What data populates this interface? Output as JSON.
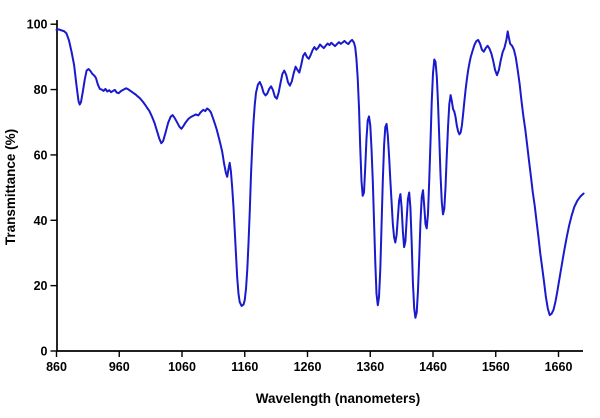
{
  "chart_data": {
    "type": "line",
    "title": "",
    "xlabel": "Wavelength (nanometers)",
    "ylabel": "Transmittance  (%)",
    "xlim": [
      860,
      1700
    ],
    "ylim": [
      0,
      100
    ],
    "x_ticks": [
      "860",
      "960",
      "1060",
      "1160",
      "1260",
      "1360",
      "1460",
      "1560",
      "1660"
    ],
    "y_ticks": [
      "0",
      "20",
      "40",
      "60",
      "80",
      "100"
    ],
    "grid": false,
    "legend": "none",
    "line_color": "#1a1acd",
    "axis_color": "#000000",
    "background_color": "#ffffff",
    "series": [
      {
        "name": "transmittance",
        "points": [
          [
            860,
            98.3
          ],
          [
            864,
            98.4
          ],
          [
            868,
            98.1
          ],
          [
            872,
            97.9
          ],
          [
            876,
            97.2
          ],
          [
            880,
            95.0
          ],
          [
            884,
            91.5
          ],
          [
            888,
            87.5
          ],
          [
            892,
            81.0
          ],
          [
            895,
            76.5
          ],
          [
            897,
            75.4
          ],
          [
            899,
            76.2
          ],
          [
            902,
            79.5
          ],
          [
            905,
            83.0
          ],
          [
            908,
            85.8
          ],
          [
            911,
            86.3
          ],
          [
            914,
            85.7
          ],
          [
            917,
            84.8
          ],
          [
            920,
            84.3
          ],
          [
            923,
            83.5
          ],
          [
            926,
            81.5
          ],
          [
            929,
            80.2
          ],
          [
            932,
            80.0
          ],
          [
            935,
            79.6
          ],
          [
            938,
            80.2
          ],
          [
            941,
            79.4
          ],
          [
            944,
            79.8
          ],
          [
            947,
            79.2
          ],
          [
            950,
            79.6
          ],
          [
            953,
            79.9
          ],
          [
            956,
            79.1
          ],
          [
            959,
            78.9
          ],
          [
            962,
            79.4
          ],
          [
            965,
            79.8
          ],
          [
            968,
            80.1
          ],
          [
            971,
            80.4
          ],
          [
            974,
            80.1
          ],
          [
            977,
            79.7
          ],
          [
            980,
            79.3
          ],
          [
            983,
            78.9
          ],
          [
            986,
            78.5
          ],
          [
            989,
            78.0
          ],
          [
            992,
            77.5
          ],
          [
            995,
            76.9
          ],
          [
            998,
            76.2
          ],
          [
            1001,
            75.4
          ],
          [
            1004,
            74.5
          ],
          [
            1008,
            73.4
          ],
          [
            1012,
            71.8
          ],
          [
            1016,
            69.9
          ],
          [
            1020,
            67.4
          ],
          [
            1024,
            64.9
          ],
          [
            1027,
            63.6
          ],
          [
            1030,
            64.3
          ],
          [
            1034,
            67.0
          ],
          [
            1038,
            69.9
          ],
          [
            1042,
            71.7
          ],
          [
            1045,
            72.2
          ],
          [
            1048,
            71.4
          ],
          [
            1052,
            70.0
          ],
          [
            1056,
            68.6
          ],
          [
            1059,
            68.0
          ],
          [
            1062,
            68.8
          ],
          [
            1066,
            70.0
          ],
          [
            1070,
            71.0
          ],
          [
            1074,
            71.6
          ],
          [
            1078,
            72.0
          ],
          [
            1082,
            72.4
          ],
          [
            1086,
            72.1
          ],
          [
            1090,
            73.1
          ],
          [
            1094,
            73.8
          ],
          [
            1097,
            73.4
          ],
          [
            1100,
            74.2
          ],
          [
            1103,
            73.8
          ],
          [
            1106,
            73.0
          ],
          [
            1109,
            71.5
          ],
          [
            1112,
            69.8
          ],
          [
            1115,
            68.0
          ],
          [
            1118,
            65.8
          ],
          [
            1121,
            63.5
          ],
          [
            1124,
            61.0
          ],
          [
            1127,
            57.5
          ],
          [
            1130,
            54.5
          ],
          [
            1132,
            53.3
          ],
          [
            1134,
            55.5
          ],
          [
            1136,
            57.6
          ],
          [
            1138,
            55.0
          ],
          [
            1140,
            50.0
          ],
          [
            1142,
            44.0
          ],
          [
            1144,
            37.0
          ],
          [
            1146,
            29.5
          ],
          [
            1148,
            22.5
          ],
          [
            1150,
            17.5
          ],
          [
            1152,
            15.0
          ],
          [
            1155,
            13.8
          ],
          [
            1158,
            14.2
          ],
          [
            1160,
            15.5
          ],
          [
            1162,
            19.0
          ],
          [
            1164,
            25.0
          ],
          [
            1166,
            33.0
          ],
          [
            1168,
            43.0
          ],
          [
            1170,
            54.0
          ],
          [
            1172,
            63.0
          ],
          [
            1174,
            70.0
          ],
          [
            1176,
            75.5
          ],
          [
            1178,
            79.0
          ],
          [
            1181,
            81.5
          ],
          [
            1184,
            82.3
          ],
          [
            1187,
            81.0
          ],
          [
            1190,
            79.0
          ],
          [
            1193,
            78.2
          ],
          [
            1196,
            78.8
          ],
          [
            1199,
            80.2
          ],
          [
            1202,
            81.0
          ],
          [
            1205,
            79.8
          ],
          [
            1208,
            77.8
          ],
          [
            1211,
            77.2
          ],
          [
            1214,
            79.0
          ],
          [
            1217,
            82.0
          ],
          [
            1220,
            84.8
          ],
          [
            1223,
            85.8
          ],
          [
            1226,
            84.5
          ],
          [
            1229,
            82.2
          ],
          [
            1232,
            81.2
          ],
          [
            1235,
            82.5
          ],
          [
            1238,
            85.0
          ],
          [
            1241,
            87.0
          ],
          [
            1244,
            86.0
          ],
          [
            1247,
            85.2
          ],
          [
            1250,
            87.5
          ],
          [
            1253,
            90.3
          ],
          [
            1256,
            91.2
          ],
          [
            1259,
            90.0
          ],
          [
            1262,
            89.4
          ],
          [
            1265,
            90.5
          ],
          [
            1268,
            92.0
          ],
          [
            1271,
            93.0
          ],
          [
            1274,
            92.2
          ],
          [
            1277,
            92.8
          ],
          [
            1280,
            93.8
          ],
          [
            1283,
            93.2
          ],
          [
            1286,
            92.7
          ],
          [
            1289,
            93.4
          ],
          [
            1292,
            94.1
          ],
          [
            1295,
            93.6
          ],
          [
            1298,
            94.3
          ],
          [
            1301,
            93.8
          ],
          [
            1304,
            93.3
          ],
          [
            1307,
            93.9
          ],
          [
            1310,
            94.5
          ],
          [
            1313,
            94.0
          ],
          [
            1316,
            94.4
          ],
          [
            1319,
            94.9
          ],
          [
            1322,
            94.3
          ],
          [
            1325,
            93.9
          ],
          [
            1328,
            94.7
          ],
          [
            1331,
            95.2
          ],
          [
            1334,
            94.4
          ],
          [
            1336,
            93.0
          ],
          [
            1338,
            89.5
          ],
          [
            1340,
            83.5
          ],
          [
            1342,
            74.5
          ],
          [
            1344,
            62.5
          ],
          [
            1346,
            52.0
          ],
          [
            1348,
            47.5
          ],
          [
            1350,
            48.5
          ],
          [
            1352,
            56.0
          ],
          [
            1354,
            65.0
          ],
          [
            1356,
            70.5
          ],
          [
            1358,
            71.8
          ],
          [
            1360,
            69.0
          ],
          [
            1362,
            62.0
          ],
          [
            1364,
            52.0
          ],
          [
            1366,
            40.0
          ],
          [
            1368,
            27.0
          ],
          [
            1370,
            17.5
          ],
          [
            1372,
            14.0
          ],
          [
            1374,
            16.5
          ],
          [
            1376,
            25.0
          ],
          [
            1378,
            38.0
          ],
          [
            1380,
            52.0
          ],
          [
            1382,
            63.0
          ],
          [
            1384,
            68.5
          ],
          [
            1386,
            69.5
          ],
          [
            1388,
            66.0
          ],
          [
            1390,
            59.5
          ],
          [
            1392,
            52.5
          ],
          [
            1394,
            45.5
          ],
          [
            1396,
            39.0
          ],
          [
            1398,
            34.8
          ],
          [
            1400,
            33.2
          ],
          [
            1402,
            35.5
          ],
          [
            1404,
            41.0
          ],
          [
            1406,
            46.0
          ],
          [
            1408,
            48.0
          ],
          [
            1410,
            44.0
          ],
          [
            1412,
            36.5
          ],
          [
            1414,
            31.8
          ],
          [
            1416,
            33.5
          ],
          [
            1418,
            40.0
          ],
          [
            1420,
            46.5
          ],
          [
            1422,
            48.5
          ],
          [
            1424,
            44.0
          ],
          [
            1426,
            33.0
          ],
          [
            1428,
            21.0
          ],
          [
            1430,
            13.0
          ],
          [
            1432,
            10.2
          ],
          [
            1434,
            11.8
          ],
          [
            1436,
            18.0
          ],
          [
            1438,
            28.0
          ],
          [
            1440,
            39.0
          ],
          [
            1442,
            47.0
          ],
          [
            1444,
            49.2
          ],
          [
            1446,
            44.5
          ],
          [
            1448,
            38.8
          ],
          [
            1450,
            37.5
          ],
          [
            1452,
            42.0
          ],
          [
            1454,
            52.0
          ],
          [
            1456,
            64.0
          ],
          [
            1458,
            76.0
          ],
          [
            1460,
            85.0
          ],
          [
            1462,
            89.2
          ],
          [
            1464,
            88.5
          ],
          [
            1466,
            84.0
          ],
          [
            1468,
            76.0
          ],
          [
            1470,
            65.0
          ],
          [
            1472,
            54.0
          ],
          [
            1474,
            45.5
          ],
          [
            1476,
            41.8
          ],
          [
            1478,
            43.5
          ],
          [
            1480,
            50.0
          ],
          [
            1482,
            60.0
          ],
          [
            1484,
            69.0
          ],
          [
            1486,
            75.5
          ],
          [
            1488,
            78.3
          ],
          [
            1490,
            76.5
          ],
          [
            1492,
            74.0
          ],
          [
            1494,
            73.3
          ],
          [
            1496,
            71.5
          ],
          [
            1498,
            69.0
          ],
          [
            1500,
            67.2
          ],
          [
            1502,
            66.3
          ],
          [
            1504,
            66.8
          ],
          [
            1506,
            69.0
          ],
          [
            1508,
            72.5
          ],
          [
            1510,
            76.5
          ],
          [
            1512,
            80.0
          ],
          [
            1514,
            83.2
          ],
          [
            1516,
            85.8
          ],
          [
            1518,
            88.0
          ],
          [
            1520,
            89.8
          ],
          [
            1523,
            91.8
          ],
          [
            1526,
            93.6
          ],
          [
            1529,
            94.8
          ],
          [
            1532,
            95.2
          ],
          [
            1535,
            94.0
          ],
          [
            1538,
            92.2
          ],
          [
            1541,
            91.6
          ],
          [
            1544,
            92.7
          ],
          [
            1547,
            93.4
          ],
          [
            1550,
            92.5
          ],
          [
            1553,
            91.0
          ],
          [
            1556,
            88.8
          ],
          [
            1559,
            86.0
          ],
          [
            1562,
            84.4
          ],
          [
            1565,
            86.0
          ],
          [
            1568,
            89.0
          ],
          [
            1571,
            91.5
          ],
          [
            1574,
            92.8
          ],
          [
            1577,
            95.2
          ],
          [
            1579,
            97.8
          ],
          [
            1581,
            95.8
          ],
          [
            1583,
            94.0
          ],
          [
            1586,
            93.4
          ],
          [
            1589,
            92.2
          ],
          [
            1592,
            89.8
          ],
          [
            1595,
            86.0
          ],
          [
            1598,
            81.8
          ],
          [
            1601,
            76.5
          ],
          [
            1604,
            71.8
          ],
          [
            1607,
            68.0
          ],
          [
            1610,
            63.2
          ],
          [
            1613,
            58.2
          ],
          [
            1616,
            53.5
          ],
          [
            1619,
            48.5
          ],
          [
            1622,
            44.5
          ],
          [
            1625,
            39.8
          ],
          [
            1628,
            35.0
          ],
          [
            1631,
            29.8
          ],
          [
            1634,
            25.5
          ],
          [
            1637,
            21.0
          ],
          [
            1640,
            16.5
          ],
          [
            1643,
            13.0
          ],
          [
            1646,
            11.0
          ],
          [
            1649,
            11.4
          ],
          [
            1652,
            12.6
          ],
          [
            1655,
            15.0
          ],
          [
            1658,
            18.0
          ],
          [
            1661,
            21.5
          ],
          [
            1665,
            26.0
          ],
          [
            1669,
            30.5
          ],
          [
            1673,
            34.8
          ],
          [
            1677,
            38.5
          ],
          [
            1681,
            41.5
          ],
          [
            1685,
            44.0
          ],
          [
            1690,
            46.0
          ],
          [
            1695,
            47.3
          ],
          [
            1700,
            48.2
          ]
        ]
      }
    ]
  }
}
